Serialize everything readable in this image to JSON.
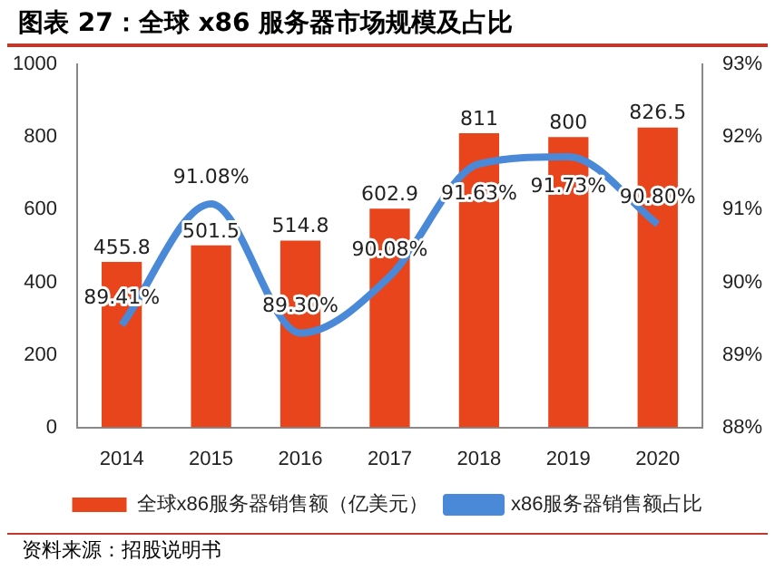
{
  "chart_data": {
    "type": "bar",
    "title": "图表 27：全球 x86 服务器市场规模及占比",
    "categories": [
      "2014",
      "2015",
      "2016",
      "2017",
      "2018",
      "2019",
      "2020"
    ],
    "series": [
      {
        "name": "全球x86服务器销售额（亿美元）",
        "color": "#e8451c",
        "values": [
          455.8,
          501.5,
          514.8,
          602.9,
          811,
          800,
          826.5
        ]
      },
      {
        "name": "x86服务器销售额占比",
        "type": "line",
        "axis": "y2",
        "color": "#4a88d8",
        "values": [
          89.41,
          91.08,
          89.3,
          90.08,
          91.63,
          91.73,
          90.8
        ],
        "value_labels": [
          "89.41%",
          "91.08%",
          "89.30%",
          "90.08%",
          "91.63%",
          "91.73%",
          "90.80%"
        ]
      }
    ],
    "data_labels": true,
    "ylim": [
      0,
      1000
    ],
    "yticks": [
      0,
      200,
      400,
      600,
      800,
      1000
    ],
    "y2lim": [
      88,
      93
    ],
    "y2ticks": [
      {
        "value": 88,
        "label": "88%"
      },
      {
        "value": 89,
        "label": "89%"
      },
      {
        "value": 90,
        "label": "90%"
      },
      {
        "value": 91,
        "label": "91%"
      },
      {
        "value": 92,
        "label": "92%"
      },
      {
        "value": 93,
        "label": "93%"
      }
    ],
    "grid": false,
    "legend": "bottom",
    "marker": "none",
    "line_style": "solid",
    "annotations": [
      "资料来源：招股说明书"
    ]
  }
}
